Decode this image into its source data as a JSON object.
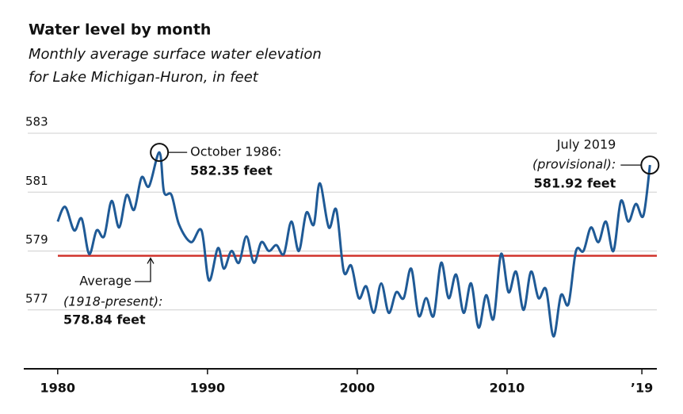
{
  "chart_data": {
    "type": "line",
    "title": "Water level by month",
    "subtitle": [
      "Monthly average surface water elevation",
      "for Lake Michigan-Huron, in feet"
    ],
    "x": [
      1980.0,
      1980.5,
      1981.1,
      1981.6,
      1982.1,
      1982.6,
      1983.1,
      1983.6,
      1984.1,
      1984.6,
      1985.1,
      1985.6,
      1986.1,
      1986.79,
      1987.1,
      1987.6,
      1988.1,
      1988.9,
      1989.6,
      1990.1,
      1990.7,
      1991.1,
      1991.6,
      1992.1,
      1992.6,
      1993.1,
      1993.6,
      1994.1,
      1994.6,
      1995.1,
      1995.6,
      1996.1,
      1996.6,
      1997.1,
      1997.5,
      1998.1,
      1998.6,
      1999.1,
      1999.6,
      2000.1,
      2000.6,
      2001.1,
      2001.6,
      2002.1,
      2002.6,
      2003.1,
      2003.6,
      2004.1,
      2004.6,
      2005.1,
      2005.6,
      2006.1,
      2006.6,
      2007.1,
      2007.6,
      2008.1,
      2008.6,
      2009.1,
      2009.6,
      2010.1,
      2010.6,
      2011.1,
      2011.6,
      2012.1,
      2012.6,
      2013.1,
      2013.6,
      2014.1,
      2014.6,
      2015.1,
      2015.6,
      2016.1,
      2016.6,
      2017.1,
      2017.6,
      2018.1,
      2018.6,
      2019.1,
      2019.54
    ],
    "series": [
      {
        "color": "#1f5a96",
        "values": [
          580.0,
          580.5,
          579.7,
          580.1,
          578.9,
          579.7,
          579.5,
          580.7,
          579.8,
          580.9,
          580.4,
          581.5,
          581.2,
          582.35,
          581.0,
          580.9,
          579.9,
          579.3,
          579.7,
          578.0,
          579.1,
          578.4,
          579.0,
          578.6,
          579.5,
          578.6,
          579.3,
          579.0,
          579.2,
          578.9,
          580.0,
          579.0,
          580.3,
          579.9,
          581.3,
          579.8,
          580.4,
          578.3,
          578.5,
          577.4,
          577.8,
          576.9,
          577.9,
          576.9,
          577.6,
          577.4,
          578.4,
          576.8,
          577.4,
          576.8,
          578.6,
          577.4,
          578.2,
          576.9,
          577.9,
          576.4,
          577.5,
          576.7,
          578.9,
          577.6,
          578.3,
          577.0,
          578.3,
          577.4,
          577.7,
          576.1,
          577.5,
          577.2,
          579.0,
          579.0,
          579.8,
          579.3,
          580.0,
          579.0,
          580.7,
          580.0,
          580.6,
          580.2,
          581.92
        ]
      }
    ],
    "xlim": [
      1978,
      2020
    ],
    "xticks": [
      1980,
      1990,
      2000,
      2010,
      {
        "value": 2019,
        "label": "’19"
      }
    ],
    "ylim": [
      575,
      583
    ],
    "yticks": [
      577,
      579,
      581,
      583
    ],
    "grid": true,
    "average": {
      "value": 578.84,
      "color": "#d0332b",
      "lines": [
        "Average",
        "(1918-present):",
        "578.84 feet"
      ]
    },
    "annotations": [
      {
        "x": 1986.79,
        "value": 582.35,
        "lines": [
          "October 1986:",
          "582.35 feet"
        ]
      },
      {
        "x": 2019.54,
        "value": 581.92,
        "lines": [
          "July 2019",
          "(provisional):",
          "581.92 feet"
        ]
      }
    ]
  }
}
